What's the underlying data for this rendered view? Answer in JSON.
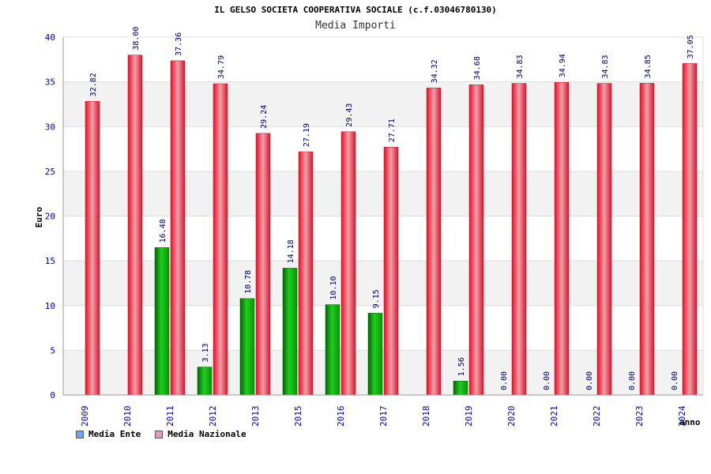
{
  "chart_data": {
    "type": "bar",
    "title": "IL GELSO SOCIETA COOPERATIVA SOCIALE (c.f.03046780130)",
    "subtitle": "Media Importi",
    "xlabel": "anno",
    "ylabel": "Euro",
    "ylim": [
      0,
      40
    ],
    "yticks": [
      0,
      5,
      10,
      15,
      20,
      25,
      30,
      35,
      40
    ],
    "categories": [
      "2009",
      "2010",
      "2011",
      "2012",
      "2013",
      "2015",
      "2016",
      "2017",
      "2018",
      "2019",
      "2020",
      "2021",
      "2022",
      "2023",
      "2024"
    ],
    "series": [
      {
        "name": "Media Ente",
        "color": "#00aa00",
        "values": [
          null,
          null,
          16.48,
          3.13,
          10.78,
          14.18,
          10.1,
          9.15,
          null,
          1.56,
          0.0,
          0.0,
          0.0,
          0.0,
          0.0
        ],
        "labels": [
          "",
          "",
          "16.48",
          "3.13",
          "10.78",
          "14.18",
          "10.10",
          "9.15",
          "",
          "1.56",
          "0.00",
          "0.00",
          "0.00",
          "0.00",
          "0.00"
        ]
      },
      {
        "name": "Media Nazionale",
        "color": "#e8283c",
        "values": [
          32.82,
          38.0,
          37.36,
          34.79,
          29.24,
          27.19,
          29.43,
          27.71,
          34.32,
          34.68,
          34.83,
          34.94,
          34.83,
          34.85,
          37.05
        ],
        "labels": [
          "32.82",
          "38.00",
          "37.36",
          "34.79",
          "29.24",
          "27.19",
          "29.43",
          "27.71",
          "34.32",
          "34.68",
          "34.83",
          "34.94",
          "34.83",
          "34.85",
          "37.05"
        ]
      }
    ],
    "legend": [
      {
        "label": "Media Ente",
        "color": "#6ea8e8"
      },
      {
        "label": "Media Nazionale",
        "color": "#e89ab8"
      }
    ]
  }
}
